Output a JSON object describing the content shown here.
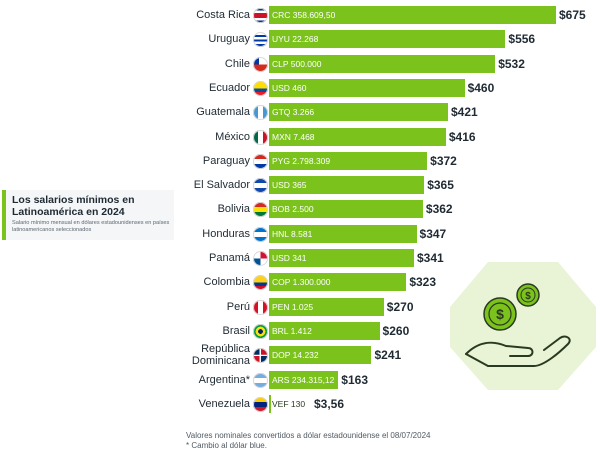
{
  "title": "Los salarios mínimos en Latinoamérica en 2024",
  "subtitle": "Salario mínimo mensual en dólares estadounidenses en países latinoamericanos seleccionados",
  "footnotes": [
    "Valores nominales convertidos a dólar estadounidense el 08/07/2024",
    "* Cambio al dólar blue."
  ],
  "colors": {
    "bar": "#7cc21c",
    "text": "#1f2a33",
    "panel": "#e9f3d6"
  },
  "illustration": {
    "icon": "hand-holding-coins-icon"
  },
  "chart_data": {
    "type": "bar",
    "orientation": "horizontal",
    "xlim": [
      0,
      675
    ],
    "categories": [
      "Costa Rica",
      "Uruguay",
      "Chile",
      "Ecuador",
      "Guatemala",
      "México",
      "Paraguay",
      "El Salvador",
      "Bolivia",
      "Honduras",
      "Panamá",
      "Colombia",
      "Perú",
      "Brasil",
      "República Dominicana",
      "Argentina*",
      "Venezuela"
    ],
    "values": [
      675,
      556,
      532,
      460,
      421,
      416,
      372,
      365,
      362,
      347,
      341,
      323,
      270,
      260,
      241,
      163,
      3.56
    ],
    "usd_labels": [
      "$675",
      "$556",
      "$532",
      "$460",
      "$421",
      "$416",
      "$372",
      "$365",
      "$362",
      "$347",
      "$341",
      "$323",
      "$270",
      "$260",
      "$241",
      "$163",
      "$3,56"
    ],
    "local_labels": [
      "CRC 358.609,50",
      "UYU 22.268",
      "CLP 500.000",
      "USD 460",
      "GTQ 3.266",
      "MXN 7.468",
      "PYG 2.798.309",
      "USD 365",
      "BOB 2.500",
      "HNL 8.581",
      "USD 341",
      "COP 1.300.000",
      "PEN 1.025",
      "BRL 1.412",
      "DOP 14.232",
      "ARS 234.315,12",
      "VEF 130"
    ],
    "flags": [
      "costa-rica-flag-icon",
      "uruguay-flag-icon",
      "chile-flag-icon",
      "ecuador-flag-icon",
      "guatemala-flag-icon",
      "mexico-flag-icon",
      "paraguay-flag-icon",
      "el-salvador-flag-icon",
      "bolivia-flag-icon",
      "honduras-flag-icon",
      "panama-flag-icon",
      "colombia-flag-icon",
      "peru-flag-icon",
      "brasil-flag-icon",
      "republica-dominicana-flag-icon",
      "argentina-flag-icon",
      "venezuela-flag-icon"
    ]
  }
}
